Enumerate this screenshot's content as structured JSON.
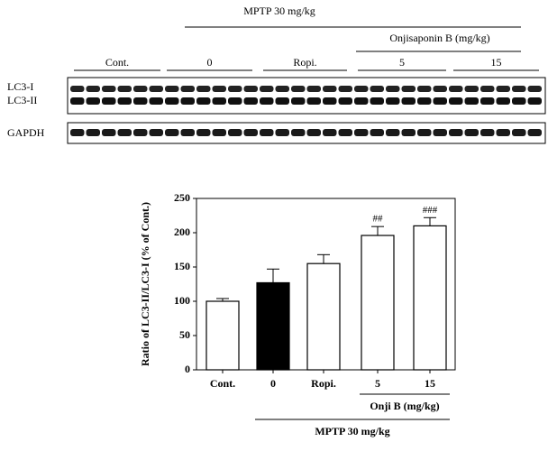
{
  "blot": {
    "treatment": "MPTP 30 mg/kg",
    "compound": "Onjisaponin B (mg/kg)",
    "groups": [
      "Cont.",
      "0",
      "Ropi.",
      "5",
      "15"
    ],
    "bands": [
      "LC3-I",
      "LC3-II"
    ],
    "control": "GAPDH"
  },
  "chart_data": {
    "type": "bar",
    "ylabel": "Ratio of LC3-II/LC3-I (% of Cont.)",
    "categories": [
      "Cont.",
      "0",
      "Ropi.",
      "5",
      "15"
    ],
    "values": [
      100,
      127,
      155,
      196,
      210
    ],
    "errors": [
      4,
      20,
      13,
      13,
      12
    ],
    "colors": [
      "#ffffff",
      "#000000",
      "#ffffff",
      "#ffffff",
      "#ffffff"
    ],
    "ylim": [
      0,
      250
    ],
    "yticks": [
      0,
      50,
      100,
      150,
      200,
      250
    ],
    "annotations": [
      {
        "category": "5",
        "text": "##"
      },
      {
        "category": "15",
        "text": "###"
      }
    ],
    "groups": [
      {
        "label": "Onji B (mg/kg)",
        "categories": [
          "5",
          "15"
        ]
      },
      {
        "label": "MPTP 30 mg/kg",
        "categories": [
          "0",
          "Ropi.",
          "5",
          "15"
        ]
      }
    ]
  }
}
